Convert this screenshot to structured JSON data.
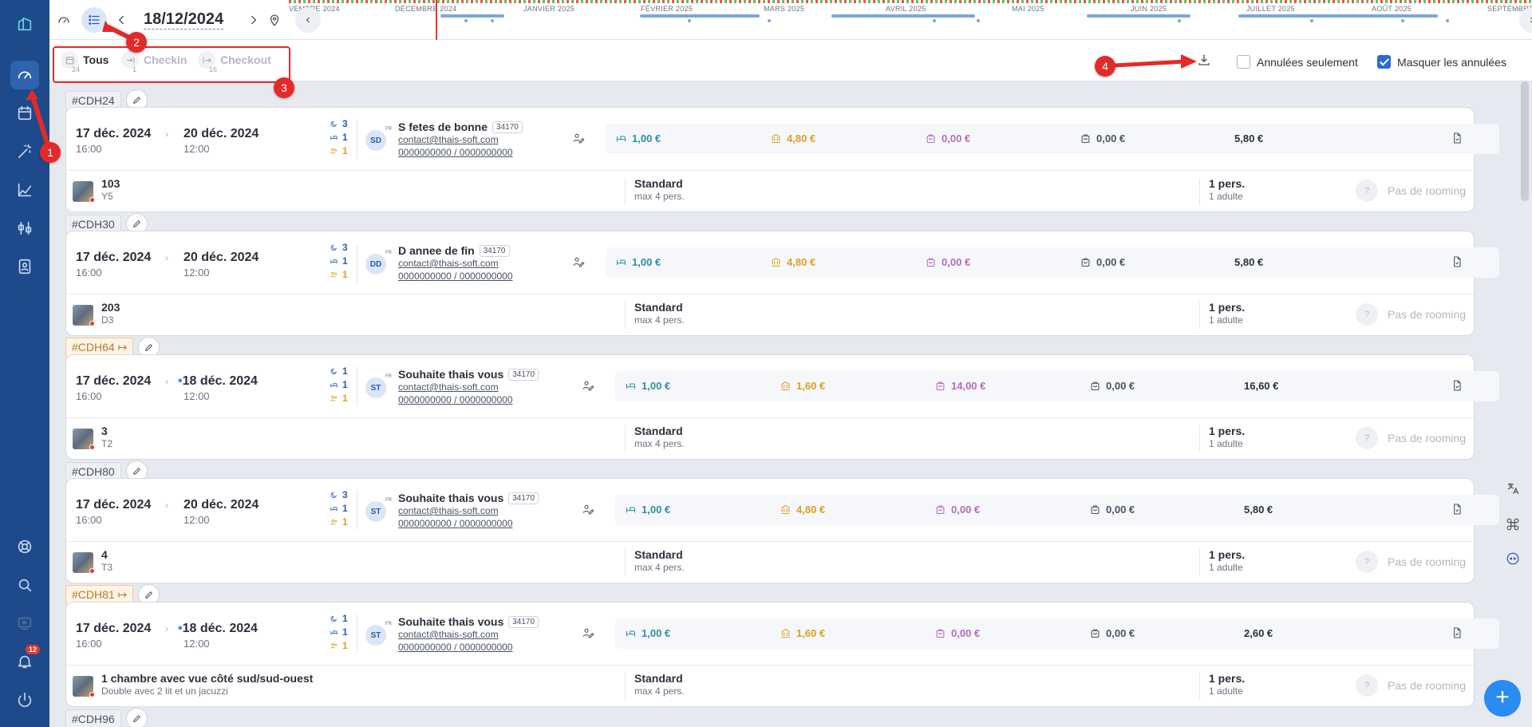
{
  "topbar": {
    "date": "18/12/2024",
    "months": [
      "VEMBRE 2024",
      "DÉCEMBRE 2024",
      "JANVIER 2025",
      "FÉVRIER 2025",
      "MARS 2025",
      "AVRIL 2025",
      "MAI 2025",
      "JUIN 2025",
      "JUILLET 2025",
      "AOÛT 2025",
      "SEPTEMBRE"
    ]
  },
  "filters": {
    "tabs": [
      {
        "label": "Tous",
        "count": "24"
      },
      {
        "label": "Checkin",
        "count": "1"
      },
      {
        "label": "Checkout",
        "count": "16"
      }
    ],
    "cancelled_only": "Annulées seulement",
    "hide_cancelled": "Masquer les annulées"
  },
  "annotations": [
    "1",
    "2",
    "3",
    "4"
  ],
  "sidebar": {
    "notif_count": "12"
  },
  "bookings": [
    {
      "ref": "#CDH24",
      "orange": false,
      "arrival": "17 déc. 2024",
      "arrival_time": "16:00",
      "departure": "20 déc. 2024",
      "departure_time": "12:00",
      "nights": "3",
      "rooms": "1",
      "persons": "1",
      "initials": "SD",
      "name": "S fetes de bonne",
      "zip": "34170",
      "email": "contact@thais-soft.com",
      "phone1": "0000000000",
      "phone2": "0000000000",
      "room_price": "1,00 €",
      "tax": "4,80 €",
      "extras": "0,00 €",
      "other": "0,00 €",
      "total": "5,80 €",
      "room": "103",
      "room_sub": "Y5",
      "category": "Standard",
      "cat_sub": "max 4 pers.",
      "pers": "1 pers.",
      "pers_sub": "1 adulte",
      "rooming": "Pas de rooming"
    },
    {
      "ref": "#CDH30",
      "orange": false,
      "arrival": "17 déc. 2024",
      "arrival_time": "16:00",
      "departure": "20 déc. 2024",
      "departure_time": "12:00",
      "nights": "3",
      "rooms": "1",
      "persons": "1",
      "initials": "DD",
      "name": "D annee de fin",
      "zip": "34170",
      "email": "contact@thais-soft.com",
      "phone1": "0000000000",
      "phone2": "0000000000",
      "room_price": "1,00 €",
      "tax": "4,80 €",
      "extras": "0,00 €",
      "other": "0,00 €",
      "total": "5,80 €",
      "room": "203",
      "room_sub": "D3",
      "category": "Standard",
      "cat_sub": "max 4 pers.",
      "pers": "1 pers.",
      "pers_sub": "1 adulte",
      "rooming": "Pas de rooming"
    },
    {
      "ref": "#CDH64",
      "orange": true,
      "arrival": "17 déc. 2024",
      "arrival_time": "16:00",
      "departure": "18 déc. 2024",
      "departure_time": "12:00",
      "nights": "1",
      "rooms": "1",
      "persons": "1",
      "initials": "ST",
      "name": "Souhaite thais vous",
      "zip": "34170",
      "email": "contact@thais-soft.com",
      "phone1": "0000000000",
      "phone2": "0000000000",
      "room_price": "1,00 €",
      "tax": "1,60 €",
      "extras": "14,00 €",
      "other": "0,00 €",
      "total": "16,60 €",
      "room": "3",
      "room_sub": "T2",
      "category": "Standard",
      "cat_sub": "max 4 pers.",
      "pers": "1 pers.",
      "pers_sub": "1 adulte",
      "rooming": "Pas de rooming"
    },
    {
      "ref": "#CDH80",
      "orange": false,
      "arrival": "17 déc. 2024",
      "arrival_time": "16:00",
      "departure": "20 déc. 2024",
      "departure_time": "12:00",
      "nights": "3",
      "rooms": "1",
      "persons": "1",
      "initials": "ST",
      "name": "Souhaite thais vous",
      "zip": "34170",
      "email": "contact@thais-soft.com",
      "phone1": "0000000000",
      "phone2": "0000000000",
      "room_price": "1,00 €",
      "tax": "4,80 €",
      "extras": "0,00 €",
      "other": "0,00 €",
      "total": "5,80 €",
      "room": "4",
      "room_sub": "T3",
      "category": "Standard",
      "cat_sub": "max 4 pers.",
      "pers": "1 pers.",
      "pers_sub": "1 adulte",
      "rooming": "Pas de rooming"
    },
    {
      "ref": "#CDH81",
      "orange": true,
      "arrival": "17 déc. 2024",
      "arrival_time": "16:00",
      "departure": "18 déc. 2024",
      "departure_time": "12:00",
      "nights": "1",
      "rooms": "1",
      "persons": "1",
      "initials": "ST",
      "name": "Souhaite thais vous",
      "zip": "34170",
      "email": "contact@thais-soft.com",
      "phone1": "0000000000",
      "phone2": "0000000000",
      "room_price": "1,00 €",
      "tax": "1,60 €",
      "extras": "0,00 €",
      "other": "0,00 €",
      "total": "2,60 €",
      "room": "1 chambre avec vue côté sud/sud-ouest",
      "room_sub": "Double avec 2 lit et un jacuzzi",
      "category": "Standard",
      "cat_sub": "max 4 pers.",
      "pers": "1 pers.",
      "pers_sub": "1 adulte",
      "rooming": "Pas de rooming"
    }
  ],
  "next_ref": "#CDH96"
}
